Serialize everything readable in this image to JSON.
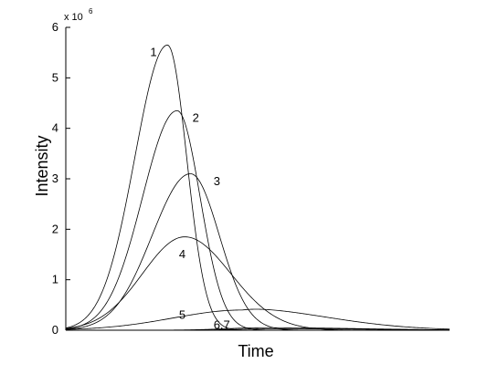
{
  "chart_data": {
    "type": "line",
    "xlabel": "Time",
    "ylabel": "Intensity",
    "y_multiplier": {
      "base": "x 10",
      "exponent": "6"
    },
    "ylim": [
      0,
      6
    ],
    "y_ticks": [
      "0",
      "1",
      "2",
      "3",
      "4",
      "5",
      "6"
    ],
    "x_ticks_labeled": false,
    "xlim": [
      0,
      100
    ],
    "grid": false,
    "legend": "none",
    "series": [
      {
        "label": "1",
        "peak_x": 26.5,
        "peak_y": 5.65,
        "width_left": 8.5,
        "width_right": 5.0,
        "tail": 0.0
      },
      {
        "label": "2",
        "peak_x": 29.0,
        "peak_y": 4.35,
        "width_left": 9.0,
        "width_right": 6.0,
        "tail": 0.0
      },
      {
        "label": "3",
        "peak_x": 32.5,
        "peak_y": 3.1,
        "width_left": 10.0,
        "width_right": 7.5,
        "tail": 0.0
      },
      {
        "label": "4",
        "peak_x": 31.0,
        "peak_y": 1.85,
        "width_left": 11.0,
        "width_right": 12.0,
        "tail": 0.0
      },
      {
        "label": "5",
        "peak_x": 46.0,
        "peak_y": 0.4,
        "width_left": 18.0,
        "width_right": 22.0,
        "tail": 0.05
      },
      {
        "label": "6",
        "peak_x": 52.0,
        "peak_y": 0.05,
        "width_left": 10.0,
        "width_right": 25.0,
        "tail": 0.0
      },
      {
        "label": "7",
        "peak_x": 55.0,
        "peak_y": 0.03,
        "width_left": 10.0,
        "width_right": 25.0,
        "tail": 0.0
      }
    ],
    "annotations": [
      {
        "text": "1",
        "x": 22.0,
        "y": 5.5
      },
      {
        "text": "2",
        "x": 33.0,
        "y": 4.2
      },
      {
        "text": "3",
        "x": 38.5,
        "y": 2.95
      },
      {
        "text": "4",
        "x": 29.5,
        "y": 1.5
      },
      {
        "text": "5",
        "x": 29.5,
        "y": 0.3
      },
      {
        "text": "6,7",
        "x": 38.5,
        "y": 0.1
      }
    ]
  }
}
